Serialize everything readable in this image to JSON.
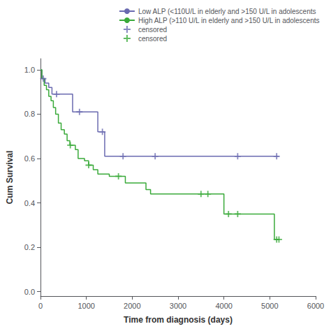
{
  "chart_data": {
    "type": "line",
    "xlabel": "Time from diagnosis (days)",
    "ylabel": "Cum Survival",
    "xlim": [
      0,
      6000
    ],
    "ylim": [
      -0.02,
      1.05
    ],
    "xticks": [
      0,
      1000,
      2000,
      3000,
      4000,
      5000,
      6000
    ],
    "yticks": [
      {
        "value": 0,
        "label": "0.0"
      },
      0.2,
      0.4,
      0.6,
      0.8,
      {
        "value": 1,
        "label": "1.0"
      }
    ],
    "grid": false,
    "legend": "upper right",
    "series": [
      {
        "name": "Low ALP (<110U/L in elderly and >150 U/L in adolescents",
        "type": "step",
        "color": "#6a6ab0",
        "x": [
          0,
          30,
          60,
          100,
          180,
          250,
          350,
          600,
          650,
          700,
          800,
          900,
          1000,
          1100,
          1250,
          1350,
          1400,
          1450,
          5200
        ],
        "values": [
          1.0,
          0.96,
          0.96,
          0.94,
          0.92,
          0.89,
          0.89,
          0.89,
          0.89,
          0.81,
          0.81,
          0.81,
          0.81,
          0.81,
          0.72,
          0.72,
          0.61,
          0.61,
          0.61
        ]
      },
      {
        "name": "High ALP (>110 U/L in elderly and >150 U/L in adolescents",
        "type": "step",
        "color": "#3aaa3a",
        "x": [
          0,
          30,
          80,
          130,
          180,
          230,
          280,
          330,
          390,
          450,
          520,
          580,
          640,
          700,
          760,
          820,
          880,
          960,
          1050,
          1150,
          1250,
          1350,
          1500,
          1700,
          1850,
          2000,
          2100,
          2200,
          2300,
          2400,
          2500,
          2600,
          2900,
          3100,
          3500,
          3700,
          4000,
          4100,
          4200,
          4300,
          5100,
          5200
        ],
        "values": [
          1.0,
          0.96,
          0.93,
          0.91,
          0.88,
          0.86,
          0.83,
          0.8,
          0.76,
          0.73,
          0.71,
          0.68,
          0.66,
          0.66,
          0.64,
          0.6,
          0.6,
          0.59,
          0.57,
          0.55,
          0.53,
          0.53,
          0.52,
          0.52,
          0.49,
          0.49,
          0.49,
          0.49,
          0.46,
          0.44,
          0.44,
          0.44,
          0.44,
          0.44,
          0.44,
          0.44,
          0.35,
          0.35,
          0.35,
          0.35,
          0.235,
          0.235
        ]
      },
      {
        "name": "censored",
        "type": "scatter",
        "marker": "plus",
        "color": "#6a6ab0",
        "x": [
          60,
          350,
          850,
          1350,
          1800,
          2500,
          4300,
          5150
        ],
        "values": [
          0.96,
          0.89,
          0.81,
          0.72,
          0.61,
          0.61,
          0.61,
          0.61
        ]
      },
      {
        "name": "censored",
        "type": "scatter",
        "marker": "plus",
        "color": "#3aaa3a",
        "x": [
          650,
          1050,
          1700,
          3500,
          3650,
          4100,
          4300,
          5150,
          5200
        ],
        "values": [
          0.66,
          0.57,
          0.52,
          0.44,
          0.44,
          0.35,
          0.35,
          0.235,
          0.235
        ]
      }
    ]
  }
}
